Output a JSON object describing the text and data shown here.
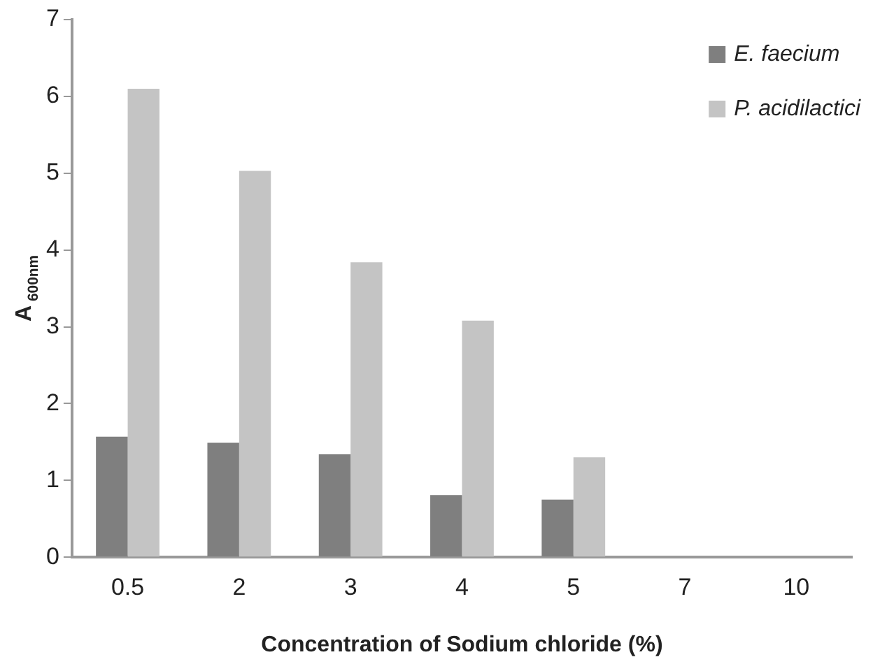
{
  "chart_data": {
    "type": "bar",
    "xlabel": "Concentration of Sodium chloride (%)",
    "ylabel": "A$_{600nm}$",
    "categories": [
      "0.5",
      "2",
      "3",
      "4",
      "5",
      "7",
      "10"
    ],
    "series": [
      {
        "name": "E. faecium",
        "color": "#7f7f7f",
        "values": [
          1.57,
          1.49,
          1.34,
          0.81,
          0.75,
          0,
          0
        ]
      },
      {
        "name": "P. acidilactici",
        "color": "#c4c4c4",
        "values": [
          6.1,
          5.03,
          3.84,
          3.08,
          1.3,
          0,
          0
        ]
      }
    ],
    "ylim": [
      0,
      7
    ],
    "yticks": [
      0,
      1,
      2,
      3,
      4,
      5,
      6,
      7
    ],
    "grid": false,
    "legend": "top right"
  }
}
